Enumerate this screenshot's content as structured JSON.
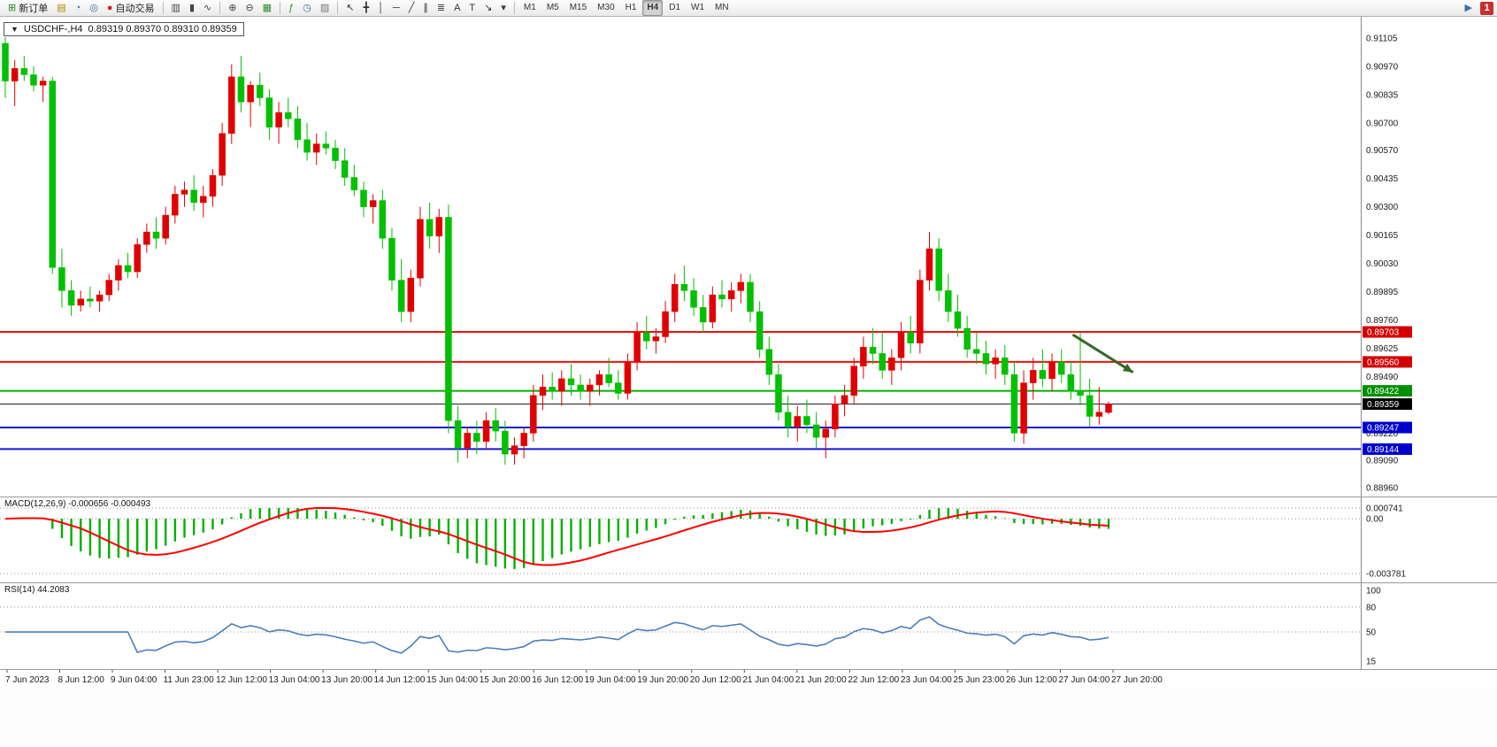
{
  "toolbar": {
    "groups": [
      {
        "items": [
          {
            "name": "new-order-button",
            "glyph": "⊞",
            "color": "#1f8a1f",
            "label": "新订单"
          }
        ]
      },
      {
        "items": [
          {
            "name": "charts-window-icon",
            "glyph": "▤",
            "color": "#b08900"
          },
          {
            "name": "profile-icon",
            "glyph": "◔",
            "color": "#3a6ea5"
          },
          {
            "name": "cycle-icon",
            "glyph": "◎",
            "color": "#3a6ea5"
          }
        ]
      },
      {
        "items": [
          {
            "name": "autotrading-button",
            "glyph": "●",
            "color": "#cc2222",
            "label": "自动交易"
          }
        ]
      },
      {
        "sep": true,
        "items": [
          {
            "name": "bar-chart-icon",
            "glyph": "▥",
            "color": "#444"
          },
          {
            "name": "candlestick-chart-icon",
            "glyph": "▮",
            "color": "#444"
          },
          {
            "name": "line-chart-icon",
            "glyph": "∿",
            "color": "#444"
          }
        ]
      },
      {
        "sep": true,
        "items": [
          {
            "name": "zoom-in-icon",
            "glyph": "⊕",
            "color": "#444"
          },
          {
            "name": "zoom-out-icon",
            "glyph": "⊖",
            "color": "#444"
          },
          {
            "name": "tile-windows-icon",
            "glyph": "▦",
            "color": "#2e8b2e"
          }
        ]
      },
      {
        "sep": true,
        "items": [
          {
            "name": "indicators-icon",
            "glyph": "ƒ",
            "color": "#2e8b2e"
          },
          {
            "name": "periods-icon",
            "glyph": "◷",
            "color": "#3a6ea5"
          },
          {
            "name": "templates-icon",
            "glyph": "▨",
            "color": "#777"
          }
        ]
      },
      {
        "sep": true,
        "items": [
          {
            "name": "cursor-icon",
            "glyph": "↖",
            "color": "#333"
          },
          {
            "name": "crosshair-icon",
            "glyph": "╋",
            "color": "#333"
          },
          {
            "name": "vertical-line-icon",
            "glyph": "│",
            "color": "#333"
          },
          {
            "name": "horizontal-line-icon",
            "glyph": "─",
            "color": "#333"
          },
          {
            "name": "trendline-icon",
            "glyph": "╱",
            "color": "#333"
          },
          {
            "name": "channel-icon",
            "glyph": "∥",
            "color": "#333"
          },
          {
            "name": "fibonacci-icon",
            "glyph": "≣",
            "color": "#333"
          },
          {
            "name": "text-icon",
            "glyph": "A",
            "color": "#333"
          },
          {
            "name": "label-icon",
            "glyph": "T",
            "color": "#333"
          },
          {
            "name": "arrows-tool-icon",
            "glyph": "↘",
            "color": "#333"
          },
          {
            "name": "tools-dropdown-icon",
            "glyph": "▾",
            "color": "#333"
          }
        ]
      },
      {
        "sep": true,
        "timeframes": true
      }
    ],
    "timeframes": [
      "M1",
      "M5",
      "M15",
      "M30",
      "H1",
      "H4",
      "D1",
      "W1",
      "MN"
    ],
    "active_timeframe": "H4",
    "right_items": [
      {
        "name": "quick-pointer-icon",
        "glyph": "▶",
        "color": "#3a6ea5"
      },
      {
        "name": "notification-badge",
        "label": "1"
      }
    ]
  },
  "chart_header": {
    "dropdown_glyph": "▼",
    "symbol": "USDCHF-,H4",
    "ohlc_text": "0.89319 0.89370 0.89310 0.89359"
  },
  "chart_data": [
    {
      "type": "candlestick",
      "title": "USDCHF-,H4",
      "symbol": "USDCHF-,H4",
      "ohlc_text": "0.89319 0.89370 0.89310 0.89359",
      "up_color": "#e00000",
      "down_color": "#00c000",
      "ylim": [
        0.8896,
        0.91105
      ],
      "y_ticks": [
        "0.91105",
        "0.90970",
        "0.90835",
        "0.90700",
        "0.90570",
        "0.90435",
        "0.90300",
        "0.90165",
        "0.90030",
        "0.89895",
        "0.89760",
        "0.89625",
        "0.89490",
        "0.89355",
        "0.89220",
        "0.89090",
        "0.88960"
      ],
      "x_labels": [
        "7 Jun 2023",
        "8 Jun 12:00",
        "9 Jun 04:00",
        "11 Jun 23:00",
        "12 Jun 12:00",
        "13 Jun 04:00",
        "13 Jun 20:00",
        "14 Jun 12:00",
        "15 Jun 04:00",
        "15 Jun 20:00",
        "16 Jun 12:00",
        "19 Jun 04:00",
        "19 Jun 20:00",
        "20 Jun 12:00",
        "21 Jun 04:00",
        "21 Jun 20:00",
        "22 Jun 12:00",
        "23 Jun 04:00",
        "25 Jun 23:00",
        "26 Jun 12:00",
        "27 Jun 04:00",
        "27 Jun 20:00"
      ],
      "hlines": [
        {
          "price": 0.89703,
          "color": "#ee1111",
          "width": 2,
          "badge": "0.89703",
          "badge_color": "#d40000"
        },
        {
          "price": 0.8956,
          "color": "#ee1111",
          "width": 2,
          "badge": "0.89560",
          "badge_color": "#d40000"
        },
        {
          "price": 0.89422,
          "color": "#00b300",
          "width": 2,
          "badge": "0.89422",
          "badge_color": "#009000"
        },
        {
          "price": 0.89359,
          "color": "#222222",
          "width": 1,
          "badge": "0.89359",
          "badge_color": "#000000"
        },
        {
          "price": 0.89247,
          "color": "#1414cc",
          "width": 2,
          "badge": "0.89247",
          "badge_color": "#0000cc"
        },
        {
          "price": 0.89144,
          "color": "#1414cc",
          "width": 2,
          "badge": "0.89144",
          "badge_color": "#0000cc"
        }
      ],
      "annotations": [
        {
          "type": "arrow",
          "from": {
            "bar": 113.2,
            "price": 0.8969
          },
          "to": {
            "bar": 119.6,
            "price": 0.8951
          },
          "color": "#336b26",
          "width": 3
        }
      ],
      "ohlc": [
        [
          0.9108,
          0.9111,
          0.9082,
          0.909
        ],
        [
          0.909,
          0.91,
          0.9078,
          0.9096
        ],
        [
          0.9096,
          0.9102,
          0.909,
          0.9093
        ],
        [
          0.9093,
          0.9097,
          0.9085,
          0.9088
        ],
        [
          0.9088,
          0.9092,
          0.908,
          0.909
        ],
        [
          0.909,
          0.9092,
          0.8998,
          0.9001
        ],
        [
          0.9001,
          0.901,
          0.8982,
          0.899
        ],
        [
          0.899,
          0.8995,
          0.8978,
          0.8983
        ],
        [
          0.8983,
          0.899,
          0.898,
          0.8986
        ],
        [
          0.8986,
          0.8992,
          0.8982,
          0.8985
        ],
        [
          0.8985,
          0.899,
          0.898,
          0.8988
        ],
        [
          0.8988,
          0.8998,
          0.8985,
          0.8995
        ],
        [
          0.8995,
          0.9005,
          0.899,
          0.9002
        ],
        [
          0.9002,
          0.9008,
          0.8996,
          0.8999
        ],
        [
          0.8999,
          0.9015,
          0.8996,
          0.9012
        ],
        [
          0.9012,
          0.9022,
          0.9008,
          0.9018
        ],
        [
          0.9018,
          0.9025,
          0.901,
          0.9015
        ],
        [
          0.9015,
          0.903,
          0.9012,
          0.9026
        ],
        [
          0.9026,
          0.904,
          0.9022,
          0.9036
        ],
        [
          0.9036,
          0.9042,
          0.903,
          0.9038
        ],
        [
          0.9038,
          0.9045,
          0.9028,
          0.9032
        ],
        [
          0.9032,
          0.904,
          0.9025,
          0.9035
        ],
        [
          0.9035,
          0.9048,
          0.903,
          0.9045
        ],
        [
          0.9045,
          0.907,
          0.904,
          0.9065
        ],
        [
          0.9065,
          0.9098,
          0.906,
          0.9092
        ],
        [
          0.9092,
          0.9102,
          0.9075,
          0.908
        ],
        [
          0.908,
          0.909,
          0.9068,
          0.9088
        ],
        [
          0.9088,
          0.9094,
          0.9078,
          0.9082
        ],
        [
          0.9082,
          0.9086,
          0.9062,
          0.9068
        ],
        [
          0.9068,
          0.908,
          0.906,
          0.9075
        ],
        [
          0.9075,
          0.9082,
          0.9068,
          0.9072
        ],
        [
          0.9072,
          0.9078,
          0.9058,
          0.9062
        ],
        [
          0.9062,
          0.907,
          0.9052,
          0.9056
        ],
        [
          0.9056,
          0.9065,
          0.905,
          0.906
        ],
        [
          0.906,
          0.9066,
          0.9055,
          0.9058
        ],
        [
          0.9058,
          0.9062,
          0.9048,
          0.9052
        ],
        [
          0.9052,
          0.9058,
          0.904,
          0.9044
        ],
        [
          0.9044,
          0.905,
          0.9035,
          0.9038
        ],
        [
          0.9038,
          0.9042,
          0.9025,
          0.903
        ],
        [
          0.903,
          0.9036,
          0.9022,
          0.9033
        ],
        [
          0.9033,
          0.9038,
          0.901,
          0.9015
        ],
        [
          0.9015,
          0.902,
          0.899,
          0.8995
        ],
        [
          0.8995,
          0.9005,
          0.8975,
          0.898
        ],
        [
          0.898,
          0.9,
          0.8975,
          0.8996
        ],
        [
          0.8996,
          0.903,
          0.8992,
          0.9024
        ],
        [
          0.9024,
          0.9032,
          0.901,
          0.9016
        ],
        [
          0.9016,
          0.9029,
          0.9008,
          0.9025
        ],
        [
          0.9025,
          0.9031,
          0.8922,
          0.8928
        ],
        [
          0.8928,
          0.8935,
          0.8908,
          0.8915
        ],
        [
          0.8915,
          0.8925,
          0.891,
          0.8922
        ],
        [
          0.8922,
          0.8928,
          0.8912,
          0.8918
        ],
        [
          0.8918,
          0.8932,
          0.8914,
          0.8928
        ],
        [
          0.8928,
          0.8934,
          0.8918,
          0.8923
        ],
        [
          0.8923,
          0.8928,
          0.8907,
          0.8912
        ],
        [
          0.8912,
          0.892,
          0.8907,
          0.8916
        ],
        [
          0.8916,
          0.8925,
          0.891,
          0.8922
        ],
        [
          0.8922,
          0.8945,
          0.8918,
          0.894
        ],
        [
          0.894,
          0.895,
          0.8933,
          0.8944
        ],
        [
          0.8944,
          0.8951,
          0.8938,
          0.8942
        ],
        [
          0.8942,
          0.8952,
          0.8935,
          0.8948
        ],
        [
          0.8948,
          0.8955,
          0.894,
          0.8945
        ],
        [
          0.8945,
          0.895,
          0.8938,
          0.8942
        ],
        [
          0.8942,
          0.8948,
          0.8935,
          0.8945
        ],
        [
          0.8945,
          0.8952,
          0.894,
          0.895
        ],
        [
          0.895,
          0.8958,
          0.8944,
          0.8946
        ],
        [
          0.8946,
          0.8952,
          0.8938,
          0.8941
        ],
        [
          0.8941,
          0.896,
          0.8938,
          0.8956
        ],
        [
          0.8956,
          0.8975,
          0.8952,
          0.897
        ],
        [
          0.897,
          0.8978,
          0.8962,
          0.8966
        ],
        [
          0.8966,
          0.8972,
          0.896,
          0.8968
        ],
        [
          0.8968,
          0.8985,
          0.8965,
          0.898
        ],
        [
          0.898,
          0.8998,
          0.8975,
          0.8993
        ],
        [
          0.8993,
          0.9002,
          0.8985,
          0.899
        ],
        [
          0.899,
          0.8996,
          0.8978,
          0.8982
        ],
        [
          0.8982,
          0.8988,
          0.897,
          0.8975
        ],
        [
          0.8975,
          0.8992,
          0.8972,
          0.8988
        ],
        [
          0.8988,
          0.8995,
          0.8982,
          0.8986
        ],
        [
          0.8986,
          0.8994,
          0.898,
          0.899
        ],
        [
          0.899,
          0.8998,
          0.8984,
          0.8994
        ],
        [
          0.8994,
          0.8998,
          0.8975,
          0.898
        ],
        [
          0.898,
          0.8985,
          0.8958,
          0.8962
        ],
        [
          0.8962,
          0.8968,
          0.8945,
          0.895
        ],
        [
          0.895,
          0.8955,
          0.8928,
          0.8932
        ],
        [
          0.8932,
          0.894,
          0.892,
          0.8925
        ],
        [
          0.8925,
          0.8935,
          0.8918,
          0.893
        ],
        [
          0.893,
          0.8938,
          0.8922,
          0.8926
        ],
        [
          0.8926,
          0.8932,
          0.8915,
          0.892
        ],
        [
          0.892,
          0.8928,
          0.891,
          0.8924
        ],
        [
          0.8924,
          0.894,
          0.892,
          0.8936
        ],
        [
          0.8936,
          0.8945,
          0.893,
          0.894
        ],
        [
          0.894,
          0.8958,
          0.8936,
          0.8954
        ],
        [
          0.8954,
          0.8968,
          0.8948,
          0.8963
        ],
        [
          0.8963,
          0.8972,
          0.8955,
          0.896
        ],
        [
          0.896,
          0.897,
          0.8948,
          0.8952
        ],
        [
          0.8952,
          0.8962,
          0.8945,
          0.8958
        ],
        [
          0.8958,
          0.8975,
          0.8952,
          0.897
        ],
        [
          0.897,
          0.8978,
          0.896,
          0.8965
        ],
        [
          0.8965,
          0.9,
          0.896,
          0.8995
        ],
        [
          0.8995,
          0.9018,
          0.899,
          0.901
        ],
        [
          0.901,
          0.9015,
          0.8985,
          0.899
        ],
        [
          0.899,
          0.8998,
          0.8975,
          0.898
        ],
        [
          0.898,
          0.8988,
          0.8968,
          0.8972
        ],
        [
          0.8972,
          0.8978,
          0.8958,
          0.8962
        ],
        [
          0.8962,
          0.897,
          0.8955,
          0.896
        ],
        [
          0.896,
          0.8966,
          0.895,
          0.8955
        ],
        [
          0.8955,
          0.8962,
          0.8948,
          0.8958
        ],
        [
          0.8958,
          0.8964,
          0.8945,
          0.895
        ],
        [
          0.895,
          0.8956,
          0.8918,
          0.8922
        ],
        [
          0.8922,
          0.8952,
          0.8917,
          0.8946
        ],
        [
          0.8946,
          0.8958,
          0.8938,
          0.8952
        ],
        [
          0.8952,
          0.8962,
          0.8944,
          0.8948
        ],
        [
          0.8948,
          0.896,
          0.8942,
          0.8956
        ],
        [
          0.8956,
          0.8962,
          0.8946,
          0.895
        ],
        [
          0.895,
          0.8956,
          0.8938,
          0.8942
        ],
        [
          0.8942,
          0.897,
          0.8936,
          0.894
        ],
        [
          0.894,
          0.8948,
          0.8925,
          0.893
        ],
        [
          0.893,
          0.8944,
          0.8926,
          0.8932
        ],
        [
          0.89319,
          0.8937,
          0.8931,
          0.89359
        ]
      ]
    },
    {
      "type": "macd_histogram",
      "label_text": "MACD(12,26,9) -0.000656 -0.000493",
      "params": {
        "fast": 12,
        "slow": 26,
        "signal": 9
      },
      "ylim": [
        -0.003781,
        0.000741
      ],
      "y_ticks": [
        "0.000741",
        "0.00",
        "-0.003781"
      ],
      "histogram_color": "#00b000",
      "signal_color": "#ff0000",
      "derived_from": "ohlc_closes"
    },
    {
      "type": "rsi_line",
      "label_text": "RSI(14) 44.2083",
      "period": 14,
      "ylim": [
        15,
        100
      ],
      "levels": [
        80,
        50
      ],
      "y_ticks": [
        "100",
        "80",
        "50",
        "15"
      ],
      "line_color": "#4a7ebb",
      "derived_from": "ohlc_closes"
    }
  ]
}
